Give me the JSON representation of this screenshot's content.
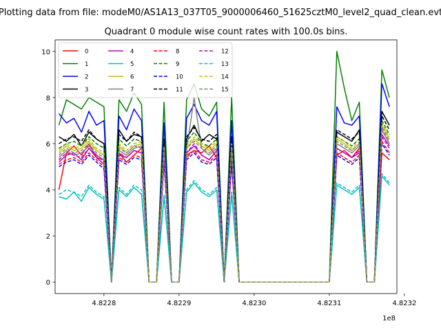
{
  "suptitle": "Plotting data from file: modeM0/AS1A13_037T05_9000006460_51625cztM0_level2_quad_clean.evt",
  "chart_data": {
    "type": "line",
    "title": "Quadrant 0 module wise count rates with 100.0s bins.",
    "xlabel": "",
    "ylabel": "",
    "x_offset_text": "1e8",
    "xlim": [
      4.822735,
      4.82319
    ],
    "ylim": [
      -0.5,
      10.5
    ],
    "x_ticks": [
      4.8228,
      4.8229,
      4.823,
      4.8231,
      4.8232
    ],
    "x_tick_labels": [
      "4.8228",
      "4.8229",
      "4.8230",
      "4.8231",
      "4.8232"
    ],
    "y_ticks": [
      0,
      2,
      4,
      6,
      8,
      10
    ],
    "y_tick_labels": [
      "0",
      "2",
      "4",
      "6",
      "8",
      "10"
    ],
    "grid": false,
    "legend_position": "upper-left",
    "legend_columns": 4,
    "x": [
      4.82274,
      4.82275,
      4.82276,
      4.82277,
      4.82278,
      4.82279,
      4.8228,
      4.82281,
      4.82282,
      4.82283,
      4.82284,
      4.82285,
      4.82286,
      4.82287,
      4.82288,
      4.82289,
      4.8229,
      4.82291,
      4.82292,
      4.82293,
      4.82294,
      4.82295,
      4.82296,
      4.82297,
      4.82298,
      4.82299,
      4.823,
      4.8231,
      4.82311,
      4.82312,
      4.82313,
      4.82314,
      4.82315,
      4.82316,
      4.82317,
      4.82318
    ],
    "series": [
      {
        "name": "0",
        "color": "#ff0000",
        "dash": "solid",
        "values": [
          4.0,
          5.6,
          5.9,
          5.5,
          6.0,
          5.4,
          5.3,
          0.0,
          5.6,
          5.2,
          5.5,
          5.8,
          0.0,
          0.0,
          5.6,
          0.0,
          0.0,
          5.5,
          5.7,
          5.6,
          5.9,
          5.4,
          0.0,
          5.2,
          0.0,
          0.0,
          0.0,
          0.0,
          5.5,
          5.7,
          5.4,
          5.8,
          0.0,
          0.0,
          5.6,
          5.3
        ]
      },
      {
        "name": "1",
        "color": "#008000",
        "dash": "solid",
        "values": [
          6.8,
          7.9,
          7.7,
          7.5,
          8.0,
          7.8,
          7.6,
          0.0,
          7.9,
          7.4,
          8.2,
          7.7,
          0.0,
          0.0,
          7.8,
          0.0,
          0.0,
          7.9,
          8.6,
          7.5,
          7.2,
          7.8,
          0.0,
          8.0,
          0.0,
          0.0,
          0.0,
          0.0,
          10.0,
          8.4,
          7.0,
          7.8,
          0.0,
          0.0,
          9.2,
          8.0
        ]
      },
      {
        "name": "2",
        "color": "#0000ff",
        "dash": "solid",
        "values": [
          7.3,
          6.9,
          7.1,
          6.5,
          7.4,
          6.8,
          7.0,
          0.0,
          7.2,
          6.6,
          7.5,
          7.0,
          0.0,
          0.0,
          6.9,
          0.0,
          0.0,
          7.1,
          7.7,
          7.0,
          6.8,
          7.4,
          0.0,
          7.0,
          0.0,
          0.0,
          0.0,
          0.0,
          7.6,
          6.9,
          6.8,
          7.2,
          0.0,
          0.0,
          8.6,
          7.6
        ]
      },
      {
        "name": "3",
        "color": "#000000",
        "dash": "solid",
        "values": [
          6.3,
          6.1,
          6.4,
          5.9,
          6.5,
          6.2,
          6.0,
          0.0,
          6.6,
          6.1,
          6.4,
          6.3,
          0.0,
          0.0,
          6.0,
          0.0,
          0.0,
          6.2,
          6.8,
          6.1,
          6.4,
          6.2,
          0.0,
          6.3,
          0.0,
          0.0,
          0.0,
          0.0,
          6.5,
          6.3,
          6.1,
          6.6,
          0.0,
          0.0,
          7.4,
          6.8
        ]
      },
      {
        "name": "4",
        "color": "#bf00bf",
        "dash": "solid",
        "values": [
          5.2,
          5.5,
          5.6,
          5.3,
          5.8,
          5.4,
          5.1,
          0.0,
          5.5,
          5.4,
          5.7,
          5.6,
          0.0,
          0.0,
          5.4,
          0.0,
          0.0,
          5.6,
          5.9,
          5.5,
          5.3,
          5.7,
          0.0,
          5.6,
          0.0,
          0.0,
          0.0,
          0.0,
          5.8,
          5.6,
          5.4,
          5.6,
          0.0,
          0.0,
          6.4,
          5.9
        ]
      },
      {
        "name": "5",
        "color": "#00bfbf",
        "dash": "solid",
        "values": [
          3.7,
          3.6,
          3.9,
          3.5,
          4.1,
          3.8,
          3.6,
          0.0,
          4.0,
          3.7,
          4.1,
          3.8,
          0.0,
          0.0,
          3.7,
          0.0,
          0.0,
          3.9,
          4.3,
          3.9,
          3.7,
          4.0,
          0.0,
          3.8,
          0.0,
          0.0,
          0.0,
          0.0,
          4.2,
          4.0,
          3.8,
          4.1,
          0.0,
          0.0,
          4.6,
          4.2
        ]
      },
      {
        "name": "6",
        "color": "#bfbf00",
        "dash": "solid",
        "values": [
          5.6,
          5.9,
          5.7,
          5.8,
          6.1,
          5.7,
          5.5,
          0.0,
          5.9,
          5.6,
          5.9,
          6.0,
          0.0,
          0.0,
          5.8,
          0.0,
          0.0,
          5.8,
          6.2,
          5.9,
          5.7,
          6.0,
          0.0,
          5.9,
          0.0,
          0.0,
          0.0,
          0.0,
          6.2,
          6.0,
          5.7,
          6.0,
          0.0,
          0.0,
          6.8,
          6.2
        ]
      },
      {
        "name": "7",
        "color": "#808080",
        "dash": "solid",
        "values": [
          5.4,
          5.7,
          5.5,
          5.6,
          5.9,
          5.5,
          5.3,
          0.0,
          5.7,
          5.5,
          5.8,
          5.9,
          0.0,
          0.0,
          5.6,
          0.0,
          0.0,
          5.7,
          8.0,
          5.8,
          5.5,
          5.8,
          0.0,
          5.7,
          0.0,
          0.0,
          0.0,
          0.0,
          6.0,
          5.8,
          5.6,
          5.9,
          0.0,
          0.0,
          6.6,
          6.0
        ]
      },
      {
        "name": "8",
        "color": "#ff0000",
        "dash": "dashed",
        "values": [
          5.1,
          5.3,
          5.4,
          5.2,
          5.6,
          5.3,
          5.0,
          0.0,
          5.4,
          5.2,
          5.5,
          5.4,
          0.0,
          0.0,
          5.3,
          0.0,
          0.0,
          5.4,
          5.7,
          5.3,
          5.2,
          5.5,
          0.0,
          5.3,
          0.0,
          0.0,
          0.0,
          0.0,
          5.6,
          5.4,
          5.2,
          5.5,
          0.0,
          0.0,
          6.1,
          5.6
        ]
      },
      {
        "name": "9",
        "color": "#008000",
        "dash": "dashed",
        "values": [
          5.8,
          6.0,
          6.1,
          5.9,
          6.3,
          6.0,
          5.8,
          0.0,
          6.2,
          5.9,
          6.2,
          6.1,
          0.0,
          0.0,
          6.0,
          0.0,
          0.0,
          6.1,
          6.5,
          6.0,
          5.9,
          6.2,
          0.0,
          6.0,
          0.0,
          0.0,
          0.0,
          0.0,
          6.3,
          6.1,
          5.9,
          6.2,
          0.0,
          0.0,
          7.0,
          6.4
        ]
      },
      {
        "name": "10",
        "color": "#0000ff",
        "dash": "dashed",
        "values": [
          5.0,
          5.2,
          5.3,
          5.1,
          5.5,
          5.2,
          4.9,
          0.0,
          5.3,
          5.1,
          5.4,
          5.3,
          0.0,
          0.0,
          5.2,
          0.0,
          0.0,
          5.3,
          5.6,
          5.2,
          5.1,
          5.4,
          0.0,
          5.2,
          0.0,
          0.0,
          0.0,
          0.0,
          5.5,
          5.3,
          5.1,
          5.4,
          0.0,
          0.0,
          6.0,
          5.5
        ]
      },
      {
        "name": "11",
        "color": "#000000",
        "dash": "dashed",
        "values": [
          6.0,
          6.2,
          6.3,
          6.1,
          6.6,
          6.2,
          6.0,
          0.0,
          6.4,
          6.1,
          6.5,
          6.3,
          0.0,
          0.0,
          6.2,
          0.0,
          0.0,
          6.3,
          6.7,
          6.2,
          6.1,
          6.4,
          0.0,
          6.2,
          0.0,
          0.0,
          0.0,
          0.0,
          6.6,
          6.4,
          6.2,
          6.5,
          0.0,
          0.0,
          7.2,
          6.6
        ]
      },
      {
        "name": "12",
        "color": "#bf00bf",
        "dash": "dashed",
        "values": [
          5.3,
          5.6,
          5.5,
          5.4,
          5.8,
          5.5,
          5.2,
          0.0,
          5.6,
          5.4,
          5.7,
          5.6,
          0.0,
          0.0,
          5.5,
          0.0,
          0.0,
          5.6,
          6.0,
          5.5,
          5.3,
          5.7,
          0.0,
          5.5,
          0.0,
          0.0,
          0.0,
          0.0,
          5.8,
          5.6,
          5.4,
          5.7,
          0.0,
          0.0,
          6.3,
          5.8
        ]
      },
      {
        "name": "13",
        "color": "#00bfbf",
        "dash": "dashed",
        "values": [
          3.8,
          4.0,
          3.9,
          3.7,
          4.2,
          3.9,
          3.7,
          0.0,
          4.1,
          3.8,
          4.2,
          4.0,
          0.0,
          0.0,
          3.8,
          0.0,
          0.0,
          4.0,
          4.4,
          4.0,
          3.8,
          4.1,
          0.0,
          3.9,
          0.0,
          0.0,
          0.0,
          0.0,
          4.3,
          4.1,
          3.9,
          4.2,
          0.0,
          0.0,
          4.7,
          4.3
        ]
      },
      {
        "name": "14",
        "color": "#bfbf00",
        "dash": "dashed",
        "values": [
          5.7,
          6.0,
          5.8,
          5.9,
          6.2,
          5.8,
          5.6,
          0.0,
          6.0,
          5.7,
          6.0,
          6.1,
          0.0,
          0.0,
          5.9,
          0.0,
          0.0,
          5.9,
          6.3,
          6.0,
          5.8,
          6.1,
          0.0,
          6.0,
          0.0,
          0.0,
          0.0,
          0.0,
          6.3,
          6.1,
          5.8,
          6.1,
          0.0,
          0.0,
          6.9,
          6.3
        ]
      },
      {
        "name": "15",
        "color": "#808080",
        "dash": "dashed",
        "values": [
          5.5,
          5.8,
          5.6,
          5.7,
          6.0,
          5.6,
          5.4,
          0.0,
          5.8,
          5.6,
          5.9,
          5.8,
          0.0,
          0.0,
          5.7,
          0.0,
          0.0,
          5.8,
          6.1,
          5.8,
          5.6,
          5.9,
          0.0,
          5.8,
          0.0,
          0.0,
          0.0,
          0.0,
          6.1,
          5.9,
          5.7,
          6.0,
          0.0,
          0.0,
          6.7,
          6.1
        ]
      }
    ]
  }
}
